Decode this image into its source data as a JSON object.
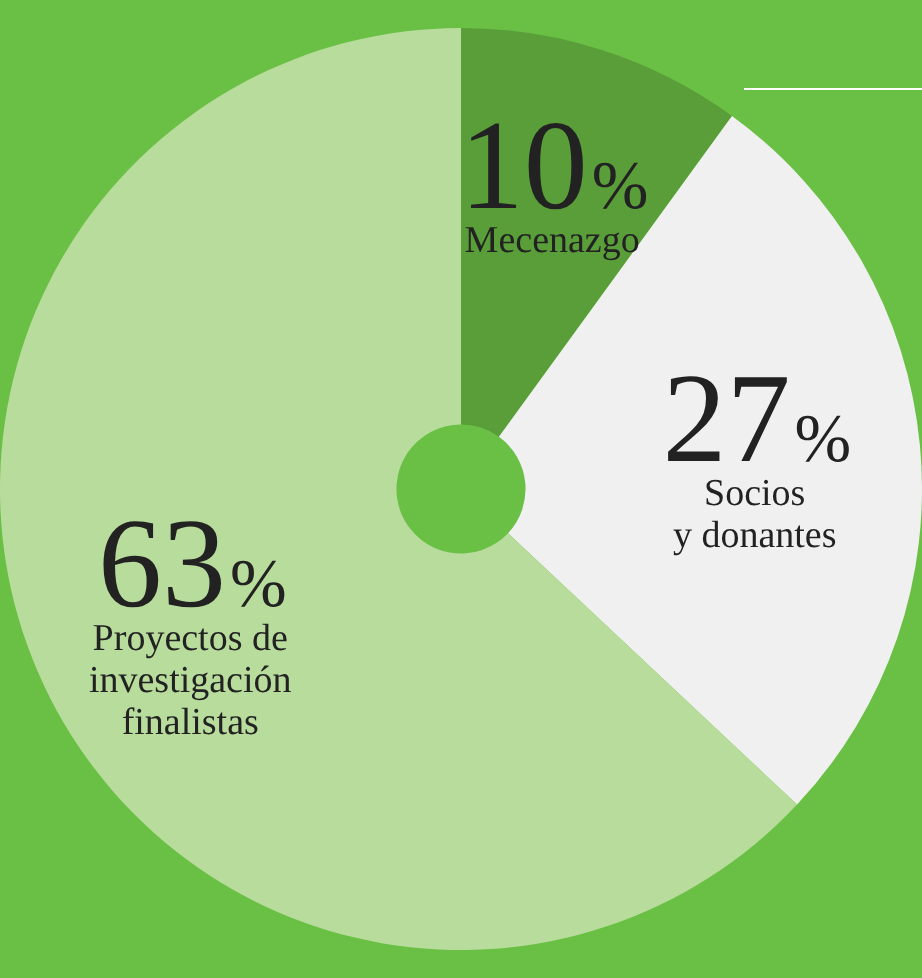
{
  "chart_data": {
    "type": "donut",
    "categories": [
      "Mecenazgo",
      "Socios\ny donantes",
      "Proyectos de\ninvestigación\nfinalistas"
    ],
    "values": [
      10,
      27,
      63
    ],
    "colors": [
      "#5a9e3a",
      "#f0f0f0",
      "#b8dc9c"
    ],
    "value_labels": [
      "10%",
      "27%",
      "63%"
    ],
    "legend": false
  }
}
